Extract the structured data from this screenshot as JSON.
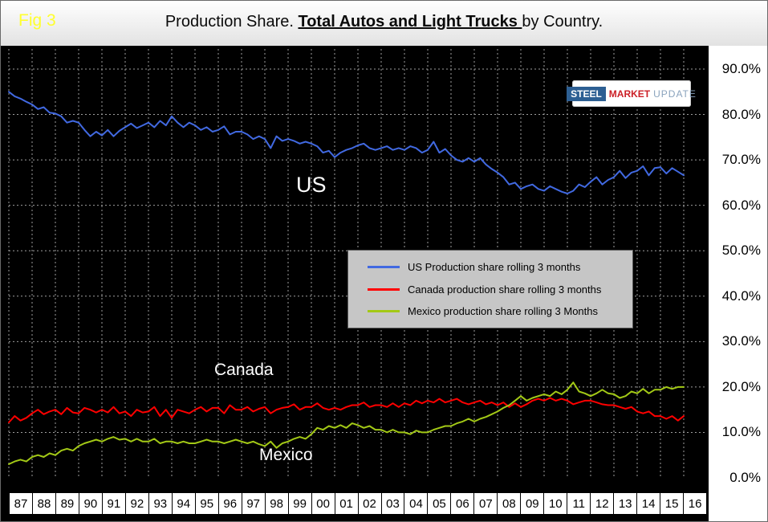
{
  "header": {
    "fig": "Fig 3",
    "title_prefix": "Production Share. ",
    "title_emphasis": "Total Autos and Light Trucks ",
    "title_suffix": "by Country."
  },
  "logo": {
    "word1": "STEEL",
    "word2": "MARKET",
    "word3": "UPDATE"
  },
  "chart_data": {
    "type": "line",
    "title": "Production Share. Total Autos and Light Trucks by Country.",
    "xlabel": "",
    "ylabel": "",
    "ylim": [
      0,
      92
    ],
    "grid": true,
    "legend_position": "center",
    "x_start": 1987,
    "x_step": 0.25,
    "x_tick_labels": [
      "87",
      "88",
      "89",
      "90",
      "91",
      "92",
      "93",
      "94",
      "95",
      "96",
      "97",
      "98",
      "99",
      "00",
      "01",
      "02",
      "03",
      "04",
      "05",
      "06",
      "07",
      "08",
      "09",
      "10",
      "11",
      "12",
      "13",
      "14",
      "15",
      "16"
    ],
    "y_ticks": {
      "labels": [
        "90.0%",
        "80.0%",
        "70.0%",
        "60.0%",
        "50.0%",
        "40.0%",
        "30.0%",
        "20.0%",
        "10.0%",
        "0.0%"
      ],
      "values": [
        90,
        80,
        70,
        60,
        50,
        40,
        30,
        20,
        10,
        0
      ]
    },
    "series": [
      {
        "name": "US",
        "legend": "US Production share rolling 3 months",
        "color": "#4169e1",
        "values": [
          85.0,
          84.0,
          83.5,
          82.8,
          82.2,
          81.2,
          81.6,
          80.4,
          80.2,
          79.6,
          78.2,
          78.6,
          78.2,
          76.6,
          75.2,
          76.2,
          75.4,
          76.6,
          75.2,
          76.4,
          77.2,
          78.0,
          77.0,
          77.6,
          78.2,
          77.2,
          78.6,
          77.6,
          79.6,
          78.2,
          77.2,
          78.2,
          77.6,
          76.6,
          77.2,
          76.2,
          76.6,
          77.4,
          75.6,
          76.2,
          76.2,
          75.6,
          74.6,
          75.2,
          74.6,
          72.6,
          75.2,
          74.2,
          74.6,
          74.2,
          73.6,
          74.0,
          73.6,
          73.0,
          71.6,
          72.0,
          70.6,
          71.6,
          72.2,
          72.6,
          73.2,
          73.6,
          72.6,
          72.2,
          72.6,
          73.0,
          72.2,
          72.6,
          72.2,
          73.0,
          72.6,
          71.6,
          72.2,
          74.0,
          71.6,
          72.4,
          71.0,
          70.0,
          69.6,
          70.4,
          69.6,
          70.4,
          69.0,
          68.0,
          67.2,
          66.2,
          64.6,
          65.0,
          63.6,
          64.2,
          64.6,
          63.6,
          63.2,
          64.2,
          63.6,
          63.0,
          62.6,
          63.2,
          64.6,
          64.0,
          65.2,
          66.2,
          64.6,
          65.6,
          66.2,
          67.6,
          66.0,
          67.2,
          67.6,
          68.6,
          66.6,
          68.2,
          68.4,
          67.0,
          68.2,
          67.4,
          66.6
        ]
      },
      {
        "name": "Canada",
        "legend": "Canada production share rolling 3 months",
        "color": "#ff0000",
        "values": [
          12.2,
          13.6,
          12.6,
          13.2,
          14.2,
          15.0,
          14.0,
          14.6,
          15.0,
          14.0,
          15.4,
          14.4,
          14.2,
          15.4,
          15.0,
          14.4,
          15.0,
          14.4,
          15.6,
          14.2,
          14.6,
          13.6,
          15.0,
          14.4,
          14.6,
          15.6,
          13.6,
          15.0,
          13.2,
          15.0,
          14.6,
          14.2,
          15.0,
          15.6,
          14.6,
          15.4,
          15.4,
          14.2,
          16.0,
          15.0,
          15.0,
          15.6,
          14.6,
          15.2,
          15.6,
          14.2,
          15.0,
          15.4,
          15.6,
          16.2,
          15.0,
          15.6,
          15.6,
          16.4,
          15.4,
          15.0,
          15.4,
          15.0,
          15.6,
          16.0,
          16.0,
          16.6,
          15.6,
          16.0,
          16.0,
          15.6,
          16.4,
          15.6,
          16.4,
          16.0,
          17.0,
          16.4,
          17.0,
          16.6,
          17.4,
          16.6,
          17.0,
          17.4,
          16.6,
          16.2,
          16.6,
          17.0,
          16.2,
          16.6,
          16.0,
          16.6,
          15.6,
          16.4,
          15.6,
          16.2,
          17.0,
          17.4,
          17.0,
          17.6,
          17.0,
          17.4,
          17.0,
          16.2,
          16.6,
          17.0,
          17.0,
          16.6,
          16.2,
          16.0,
          16.0,
          15.6,
          15.2,
          15.6,
          14.6,
          14.2,
          14.6,
          13.6,
          13.6,
          13.0,
          13.6,
          12.6,
          13.6
        ]
      },
      {
        "name": "Mexico",
        "legend": "Mexico production share rolling 3 Months",
        "color": "#a3c916",
        "values": [
          3.0,
          3.6,
          4.0,
          3.6,
          4.6,
          5.0,
          4.6,
          5.4,
          5.0,
          6.0,
          6.4,
          6.0,
          7.0,
          7.6,
          8.0,
          8.4,
          8.0,
          8.6,
          9.0,
          8.4,
          8.6,
          8.0,
          8.6,
          8.0,
          8.0,
          8.6,
          7.6,
          8.0,
          8.0,
          7.6,
          8.0,
          7.6,
          7.6,
          8.0,
          8.4,
          8.0,
          8.0,
          7.6,
          8.0,
          8.4,
          8.0,
          7.6,
          8.0,
          7.4,
          7.0,
          8.0,
          6.6,
          7.6,
          8.0,
          8.6,
          9.0,
          8.6,
          9.6,
          11.0,
          10.6,
          11.4,
          11.0,
          11.6,
          11.0,
          12.0,
          11.6,
          11.0,
          11.4,
          10.6,
          10.6,
          10.0,
          10.6,
          10.0,
          10.0,
          9.6,
          10.4,
          10.0,
          10.0,
          10.6,
          11.0,
          11.4,
          11.4,
          12.0,
          12.4,
          13.0,
          12.4,
          13.0,
          13.4,
          14.0,
          14.6,
          15.4,
          16.0,
          17.0,
          18.0,
          17.0,
          17.6,
          18.0,
          18.4,
          18.0,
          19.0,
          18.4,
          19.4,
          21.0,
          19.0,
          18.6,
          18.0,
          18.6,
          19.4,
          18.6,
          18.4,
          17.6,
          18.0,
          19.0,
          18.6,
          19.6,
          18.6,
          19.4,
          19.4,
          20.0,
          19.6,
          20.0,
          20.0
        ]
      }
    ]
  }
}
